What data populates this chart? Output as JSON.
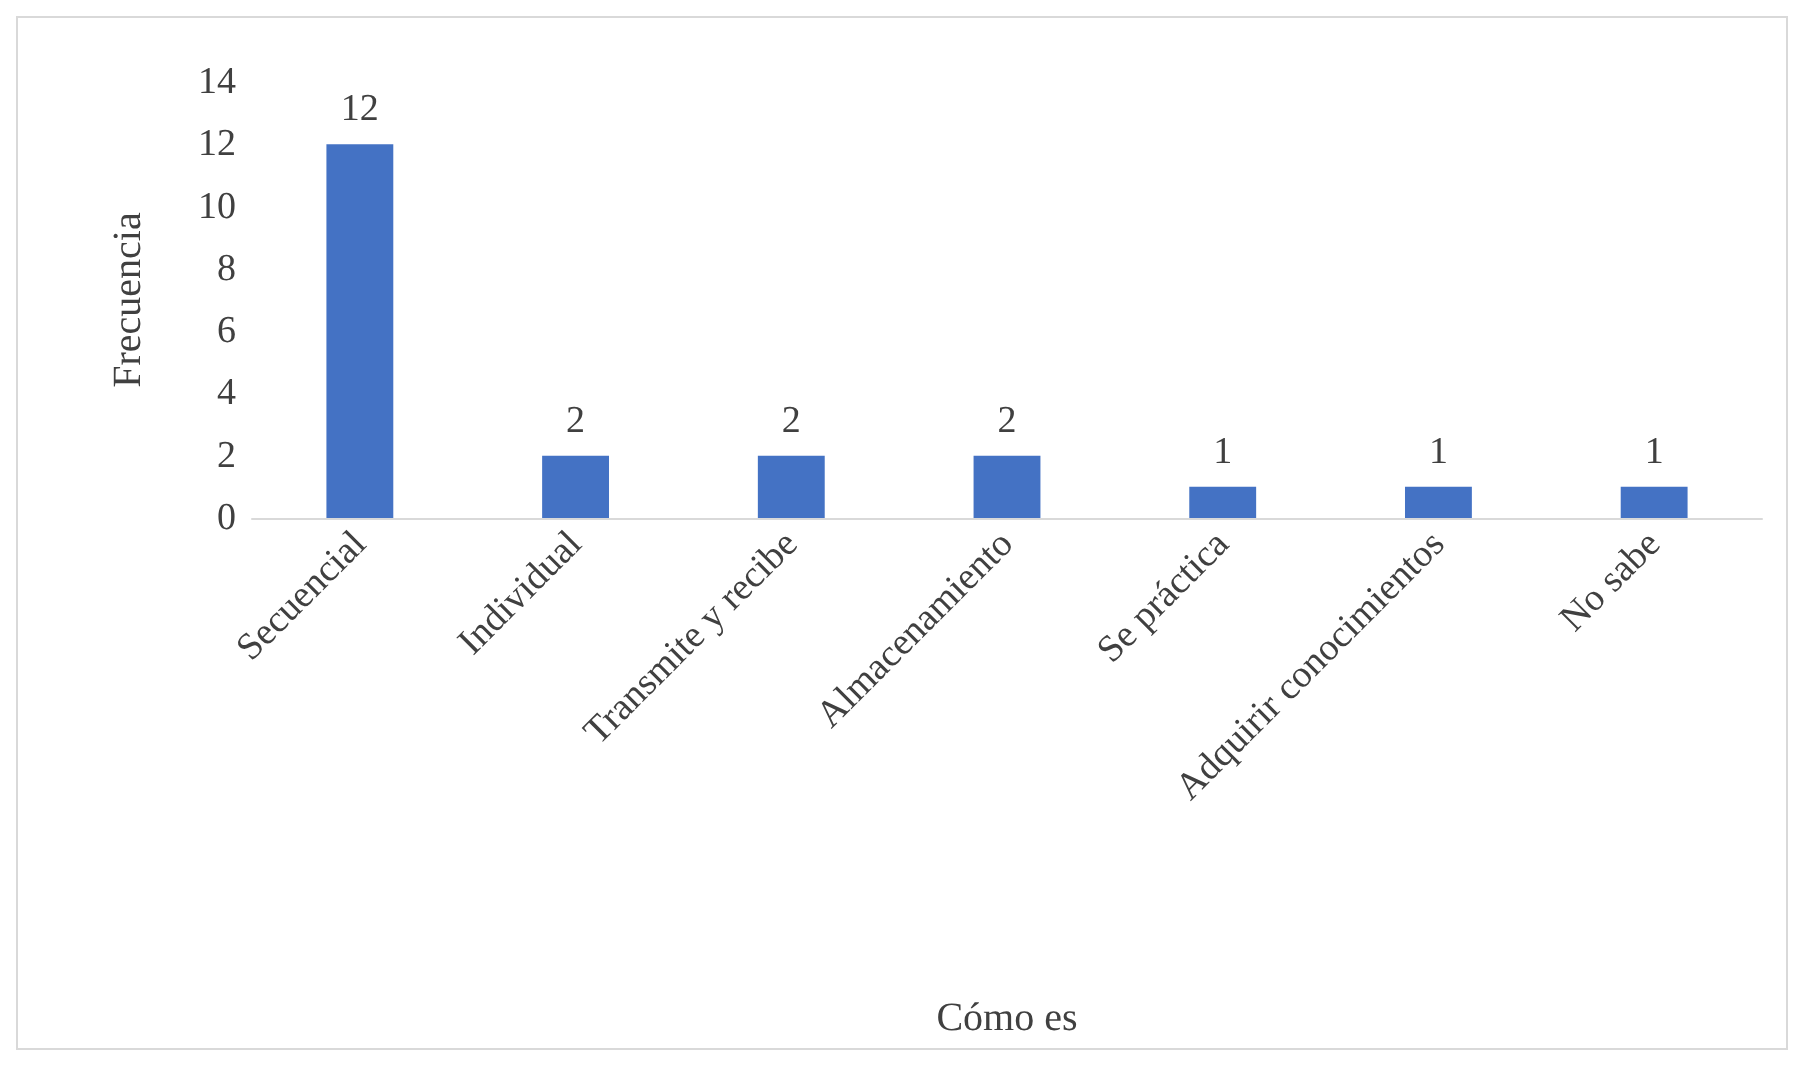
{
  "chart_data": {
    "type": "bar",
    "xlabel": "Cómo es",
    "ylabel": "Frecuencia",
    "categories": [
      "Secuencial",
      "Individual",
      "Transmite y recibe",
      "Almacenamiento",
      "Se práctica",
      "Adquirir conocimientos",
      "No sabe"
    ],
    "values": [
      12,
      2,
      2,
      2,
      1,
      1,
      1
    ],
    "color": "#4472c4",
    "ylim": [
      0,
      14
    ],
    "yticks": [
      0,
      2,
      4,
      6,
      8,
      10,
      12,
      14
    ],
    "data_labels": true
  }
}
